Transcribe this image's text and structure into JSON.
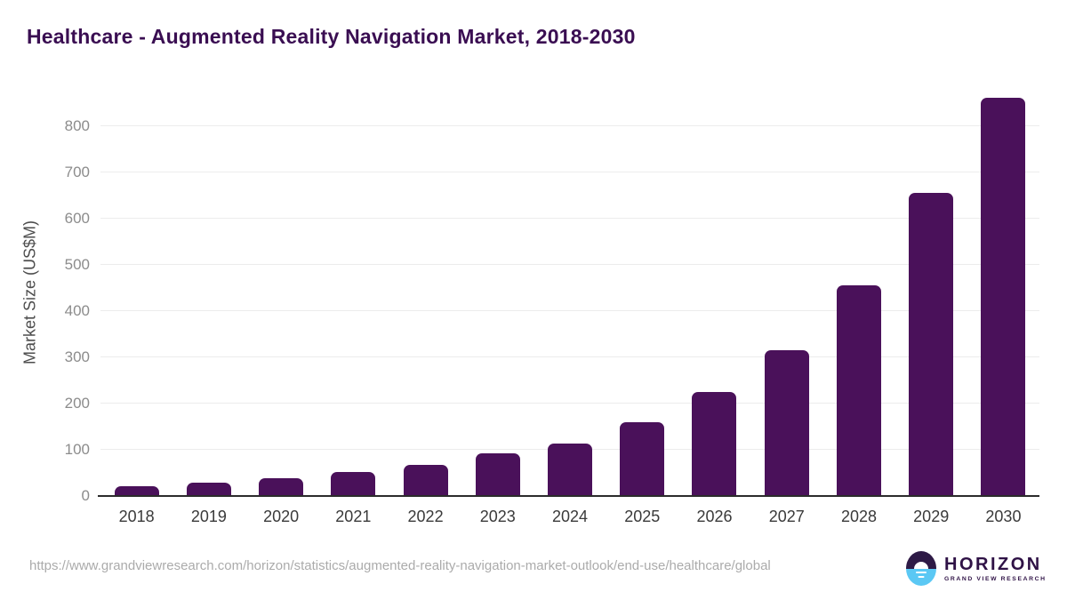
{
  "header": {
    "title": "Healthcare - Augmented Reality Navigation Market, 2018-2030"
  },
  "chart_data": {
    "type": "bar",
    "title": "Healthcare - Augmented Reality Navigation Market, 2018-2030",
    "categories": [
      "2018",
      "2019",
      "2020",
      "2021",
      "2022",
      "2023",
      "2024",
      "2025",
      "2026",
      "2027",
      "2028",
      "2029",
      "2030"
    ],
    "values": [
      22,
      28,
      38,
      52,
      68,
      92,
      114,
      159,
      225,
      316,
      455,
      656,
      860
    ],
    "xlabel": "",
    "ylabel": "Market Size (US$M)",
    "ylim": [
      0,
      880
    ],
    "yticks": [
      0,
      100,
      200,
      300,
      400,
      500,
      600,
      700,
      800
    ],
    "grid": true,
    "legend": "none",
    "bar_color": "#4A115A"
  },
  "colors": {
    "title_text": "#3A0E52",
    "bar": "#4A115A",
    "gridline": "#ececec",
    "axis_line": "#2b2b2b",
    "ytick_text": "#8c8c8c",
    "xtick_text": "#3a3a3a",
    "url_text": "#ababab",
    "logo_dark": "#2E1A46",
    "logo_blue": "#5BC8F4"
  },
  "footer": {
    "source_url": "https://www.grandviewresearch.com/horizon/statistics/augmented-reality-navigation-market-outlook/end-use/healthcare/global",
    "logo": {
      "name": "HORIZON",
      "subtitle": "GRAND VIEW RESEARCH"
    }
  }
}
